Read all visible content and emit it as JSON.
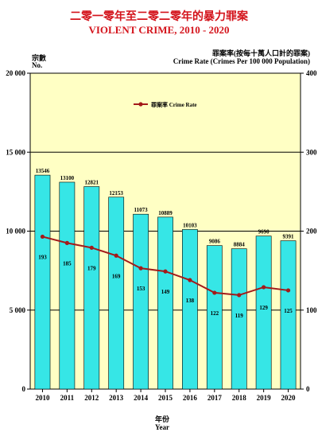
{
  "title_zh": "二零一零年至二零二零年的暴力罪案",
  "title_en": "VIOLENT CRIME, 2010 - 2020",
  "left_axis": {
    "label_zh": "宗數",
    "label_en": "No."
  },
  "right_axis": {
    "label_zh": "罪案率(按每十萬人口計的罪案)",
    "label_en": "Crime  Rate (Crimes Per 100 000 Population)"
  },
  "x_axis": {
    "label_zh": "年份",
    "label_en": "Year"
  },
  "colors": {
    "plot_bg": "#ffffc4",
    "bar": "#36e6e6",
    "line": "#a31a1a",
    "title": "#d4141c"
  },
  "chart_data": {
    "type": "bar",
    "categories": [
      "2010",
      "2011",
      "2012",
      "2013",
      "2014",
      "2015",
      "2016",
      "2017",
      "2018",
      "2019",
      "2020"
    ],
    "series": [
      {
        "values": [
          13546,
          13100,
          12821,
          12153,
          11073,
          10889,
          10103,
          9086,
          8884,
          9690,
          9391
        ],
        "axis": "left",
        "kind": "bar",
        "labels": [
          "13546",
          "13100",
          "12821",
          "12153",
          "11073",
          "10889",
          "10103",
          "9086",
          "8884",
          "9690",
          "9391"
        ]
      },
      {
        "name": "罪案率 Crime Rate",
        "values": [
          193,
          185,
          179,
          169,
          153,
          149,
          138,
          122,
          119,
          129,
          125
        ],
        "axis": "right",
        "kind": "line",
        "labels": [
          "193",
          "185",
          "179",
          "169",
          "153",
          "149",
          "138",
          "122",
          "119",
          "129",
          "125"
        ]
      }
    ],
    "ylim_left": [
      0,
      20000
    ],
    "ylim_right": [
      0,
      400
    ],
    "yticks_left": [
      0,
      5000,
      10000,
      15000,
      20000
    ],
    "ytick_labels_left": [
      "0",
      "5 000",
      "10 000",
      "15 000",
      "20 000"
    ],
    "yticks_right": [
      0,
      100,
      200,
      300,
      400
    ],
    "ytick_labels_right": [
      "0",
      "100",
      "200",
      "300",
      "400"
    ],
    "legend_position": "top-left",
    "grid": true
  }
}
